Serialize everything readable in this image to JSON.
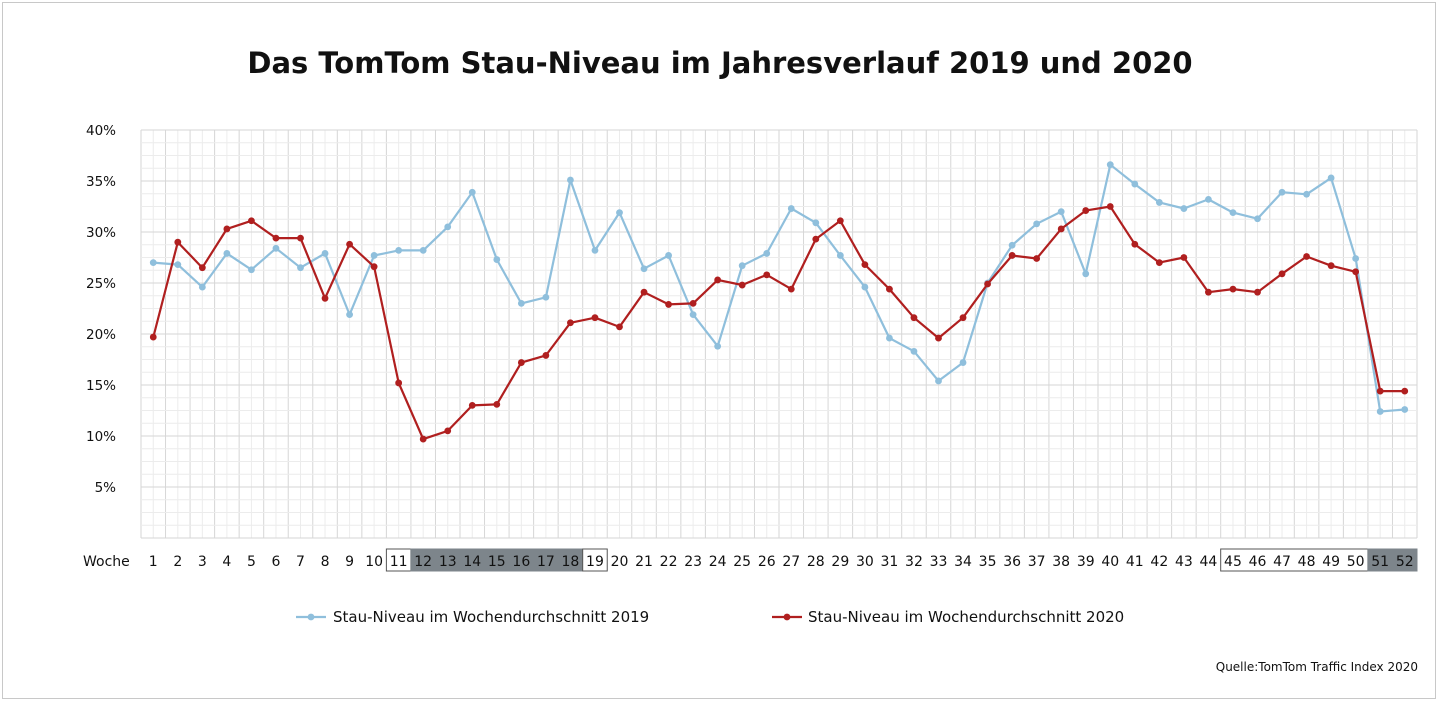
{
  "chart_data": {
    "type": "line",
    "title": "Das TomTom Stau-Niveau im Jahresverlauf 2019 und 2020",
    "xlabel": "Woche",
    "ylabel": "",
    "ylim": [
      0,
      40
    ],
    "yticks": [
      "5%",
      "10%",
      "15%",
      "20%",
      "25%",
      "30%",
      "35%",
      "40%"
    ],
    "x": [
      1,
      2,
      3,
      4,
      5,
      6,
      7,
      8,
      9,
      10,
      11,
      12,
      13,
      14,
      15,
      16,
      17,
      18,
      19,
      20,
      21,
      22,
      23,
      24,
      25,
      26,
      27,
      28,
      29,
      30,
      31,
      32,
      33,
      34,
      35,
      36,
      37,
      38,
      39,
      40,
      41,
      42,
      43,
      44,
      45,
      46,
      47,
      48,
      49,
      50,
      51,
      52
    ],
    "grid": true,
    "legend_position": "bottom",
    "series": [
      {
        "name": "Stau-Niveau im Wochendurchschnitt 2019",
        "color": "#8fbfdc",
        "values": [
          27.0,
          26.8,
          24.6,
          27.9,
          26.3,
          28.4,
          26.5,
          27.9,
          21.9,
          27.7,
          28.2,
          28.2,
          30.5,
          33.9,
          27.3,
          23.0,
          23.6,
          35.1,
          28.2,
          31.9,
          26.4,
          27.7,
          21.9,
          18.8,
          26.7,
          27.9,
          32.3,
          30.9,
          27.7,
          24.6,
          19.6,
          18.3,
          15.4,
          17.2,
          25.0,
          28.7,
          30.8,
          32.0,
          25.9,
          36.6,
          34.7,
          32.9,
          32.3,
          33.2,
          31.9,
          31.3,
          33.9,
          33.7,
          35.3,
          27.4,
          12.4,
          12.6
        ]
      },
      {
        "name": "Stau-Niveau im Wochendurchschnitt 2020",
        "color": "#b01f1f",
        "values": [
          19.7,
          29.0,
          26.5,
          30.3,
          31.1,
          29.4,
          29.4,
          23.5,
          28.8,
          26.6,
          15.2,
          9.7,
          10.5,
          13.0,
          13.1,
          17.2,
          17.9,
          21.1,
          21.6,
          20.7,
          24.1,
          22.9,
          23.0,
          25.3,
          24.8,
          25.8,
          24.4,
          29.3,
          31.1,
          26.8,
          24.4,
          21.6,
          19.6,
          21.6,
          24.9,
          27.7,
          27.4,
          30.3,
          32.1,
          32.5,
          28.8,
          27.0,
          27.5,
          24.1,
          24.4,
          24.1,
          25.9,
          27.6,
          26.7,
          26.1,
          14.4,
          14.4
        ]
      }
    ],
    "highlight_boxes": [
      {
        "weeks": [
          11,
          11
        ],
        "style": "outline"
      },
      {
        "weeks": [
          12,
          18
        ],
        "style": "dark"
      },
      {
        "weeks": [
          19,
          19
        ],
        "style": "outline"
      },
      {
        "weeks": [
          45,
          50
        ],
        "style": "outline"
      },
      {
        "weeks": [
          51,
          52
        ],
        "style": "dark"
      }
    ],
    "source": "Quelle:TomTom Traffic Index 2020"
  }
}
